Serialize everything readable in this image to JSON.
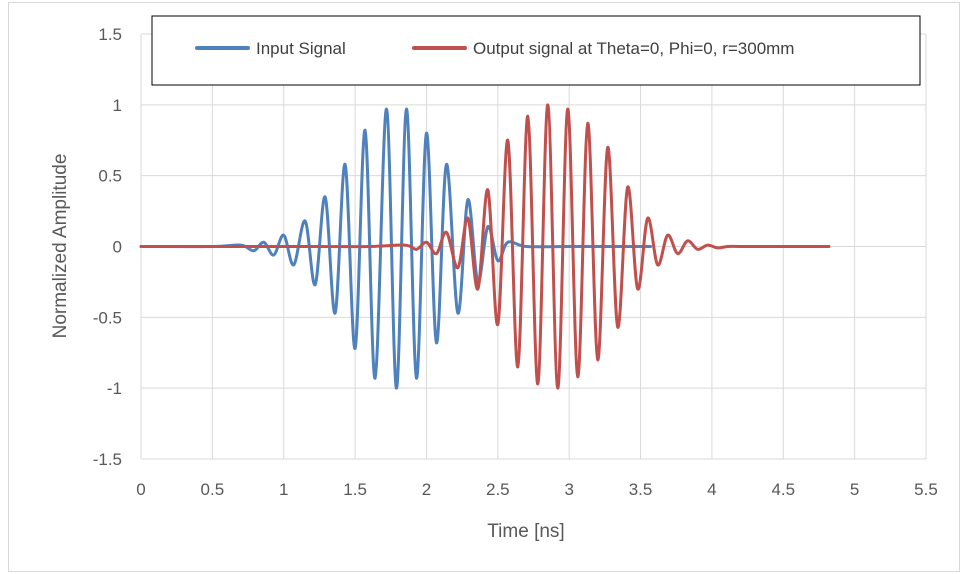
{
  "chart_data": {
    "type": "line",
    "title": "",
    "xlabel": "Time [ns]",
    "ylabel": "Normalized Amplitude",
    "xlim": [
      0,
      5.5
    ],
    "ylim": [
      -1.5,
      1.5
    ],
    "xticks": [
      0,
      0.5,
      1,
      1.5,
      2,
      2.5,
      3,
      3.5,
      4,
      4.5,
      5,
      5.5
    ],
    "xtick_labels": [
      "0",
      "0.5",
      "1",
      "1.5",
      "2",
      "2.5",
      "3",
      "3.5",
      "4",
      "4.5",
      "5",
      "5.5"
    ],
    "yticks": [
      -1.5,
      -1,
      -0.5,
      0,
      0.5,
      1,
      1.5
    ],
    "ytick_labels": [
      "-1.5",
      "-1",
      "-0.5",
      "0",
      "0.5",
      "1",
      "1.5"
    ],
    "grid": true,
    "legend_position": "top",
    "series": [
      {
        "name": "Input Signal",
        "color": "#4f81bd",
        "x": [
          0,
          0.5,
          0.7,
          0.79,
          0.86,
          0.93,
          1.0,
          1.07,
          1.15,
          1.22,
          1.29,
          1.36,
          1.43,
          1.5,
          1.57,
          1.64,
          1.72,
          1.79,
          1.86,
          1.93,
          2.0,
          2.07,
          2.14,
          2.22,
          2.29,
          2.36,
          2.43,
          2.5,
          2.57,
          2.7,
          3.0,
          3.57
        ],
        "y": [
          0,
          0,
          0.01,
          -0.03,
          0.03,
          -0.06,
          0.08,
          -0.13,
          0.18,
          -0.27,
          0.35,
          -0.47,
          0.58,
          -0.72,
          0.82,
          -0.93,
          0.97,
          -1.0,
          0.97,
          -0.93,
          0.8,
          -0.68,
          0.58,
          -0.47,
          0.33,
          -0.25,
          0.14,
          -0.1,
          0.03,
          0.0,
          0.0,
          0.0
        ]
      },
      {
        "name": "Output signal at Theta=0, Phi=0, r=300mm",
        "color": "#c0504d",
        "x": [
          0,
          1.2,
          1.6,
          1.85,
          1.93,
          2.0,
          2.07,
          2.14,
          2.22,
          2.29,
          2.36,
          2.43,
          2.5,
          2.57,
          2.64,
          2.71,
          2.78,
          2.85,
          2.92,
          2.99,
          3.06,
          3.13,
          3.2,
          3.27,
          3.34,
          3.41,
          3.48,
          3.55,
          3.62,
          3.69,
          3.76,
          3.83,
          3.9,
          3.97,
          4.04,
          4.11,
          4.2,
          4.5,
          4.82
        ],
        "y": [
          0,
          0,
          0.0,
          0.01,
          -0.02,
          0.03,
          -0.05,
          0.1,
          -0.15,
          0.2,
          -0.3,
          0.4,
          -0.55,
          0.75,
          -0.85,
          0.92,
          -0.97,
          1.0,
          -1.0,
          0.97,
          -0.92,
          0.87,
          -0.8,
          0.7,
          -0.57,
          0.42,
          -0.3,
          0.2,
          -0.13,
          0.08,
          -0.05,
          0.04,
          -0.02,
          0.01,
          -0.01,
          0.0,
          0.0,
          0.0,
          0.0
        ]
      }
    ]
  }
}
